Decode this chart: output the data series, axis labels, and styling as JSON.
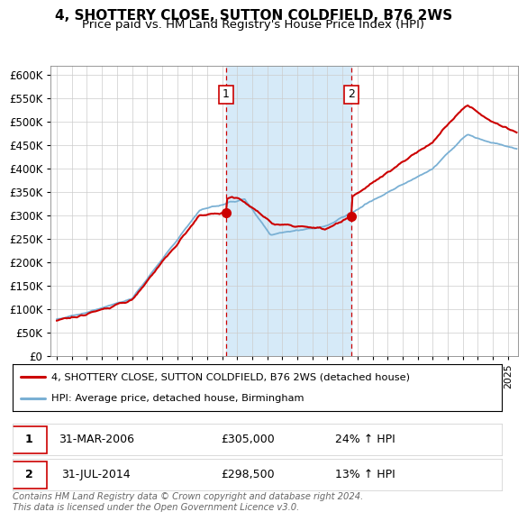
{
  "title": "4, SHOTTERY CLOSE, SUTTON COLDFIELD, B76 2WS",
  "subtitle": "Price paid vs. HM Land Registry's House Price Index (HPI)",
  "ylim": [
    0,
    620000
  ],
  "yticks": [
    0,
    50000,
    100000,
    150000,
    200000,
    250000,
    300000,
    350000,
    400000,
    450000,
    500000,
    550000,
    600000
  ],
  "xlim_start": 1994.6,
  "xlim_end": 2025.7,
  "red_color": "#cc0000",
  "blue_color": "#7ab0d4",
  "shaded_color": "#d6eaf8",
  "transaction1_x": 2006.25,
  "transaction1_y": 305000,
  "transaction1_label": "1",
  "transaction2_x": 2014.58,
  "transaction2_y": 298500,
  "transaction2_label": "2",
  "legend_red_label": "4, SHOTTERY CLOSE, SUTTON COLDFIELD, B76 2WS (detached house)",
  "legend_blue_label": "HPI: Average price, detached house, Birmingham",
  "info1_num": "1",
  "info1_date": "31-MAR-2006",
  "info1_price": "£305,000",
  "info1_hpi": "24% ↑ HPI",
  "info2_num": "2",
  "info2_date": "31-JUL-2014",
  "info2_price": "£298,500",
  "info2_hpi": "13% ↑ HPI",
  "footer": "Contains HM Land Registry data © Crown copyright and database right 2024.\nThis data is licensed under the Open Government Licence v3.0.",
  "title_fontsize": 11,
  "subtitle_fontsize": 9.5
}
